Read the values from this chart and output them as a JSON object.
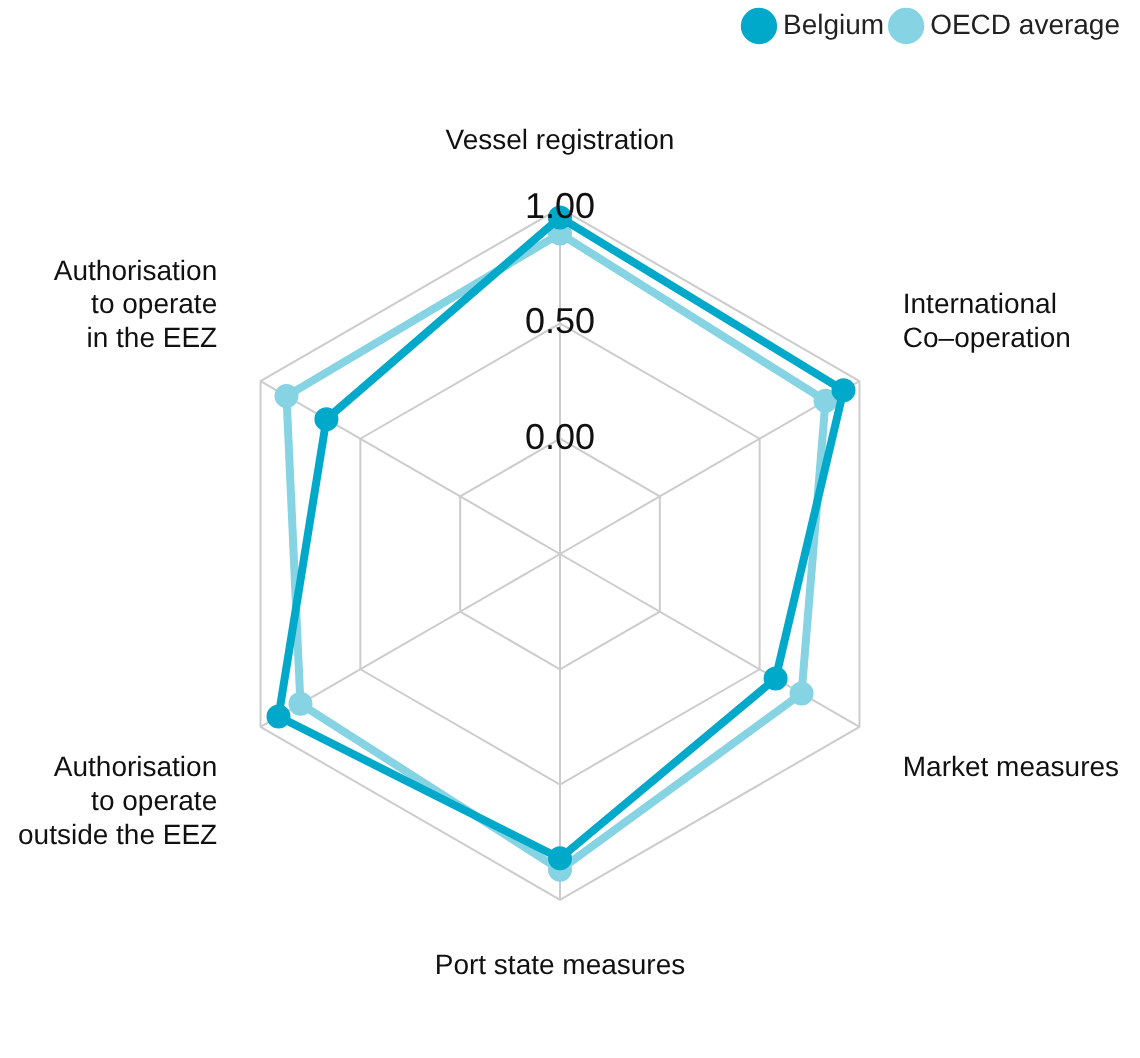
{
  "chart_data": {
    "type": "radar",
    "categories": [
      "Vessel registration",
      "International\nCo–operation",
      "Market measures",
      "Port state measures",
      "Authorisation\nto operate\noutside the EEZ",
      "Authorisation\nto operate\nin the EEZ"
    ],
    "series": [
      {
        "name": "Belgium",
        "color": "#00a9c9",
        "values": [
          0.96,
          0.92,
          0.58,
          0.82,
          0.91,
          0.67
        ]
      },
      {
        "name": "OECD average",
        "color": "#85d3e3",
        "values": [
          0.89,
          0.83,
          0.71,
          0.87,
          0.8,
          0.87
        ]
      }
    ],
    "ylim": [
      -0.5,
      1
    ],
    "yticks": [
      {
        "value": 0,
        "label": "0.00"
      },
      {
        "value": 0.5,
        "label": "0.50"
      },
      {
        "value": 1,
        "label": "1.00"
      }
    ],
    "grid": true,
    "legend": "top right",
    "marker": "circle"
  }
}
